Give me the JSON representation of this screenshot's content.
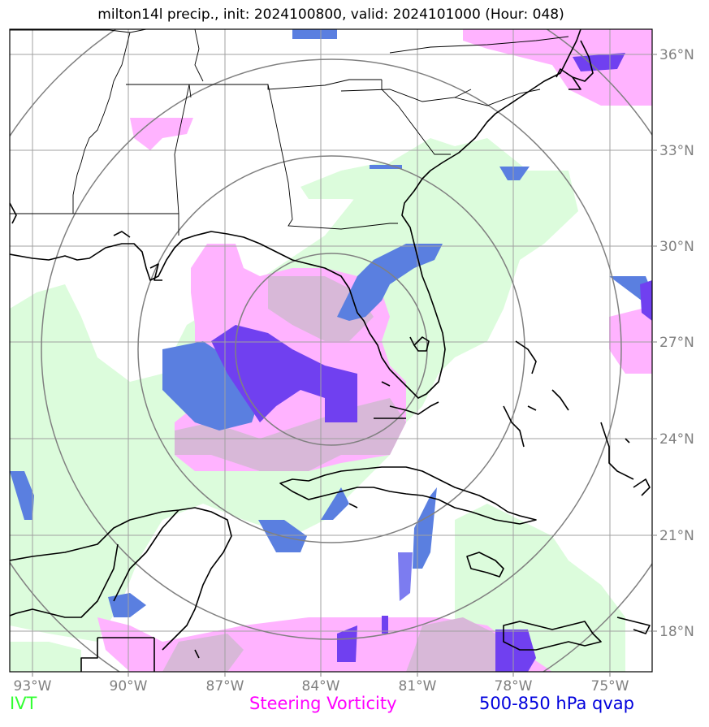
{
  "title": "milton14l precip., init: 2024100800, valid: 2024101000 (Hour: 048)",
  "axes": {
    "lon_ticks": [
      "93°W",
      "90°W",
      "87°W",
      "84°W",
      "81°W",
      "78°W",
      "75°W"
    ],
    "lat_ticks": [
      "36°N",
      "33°N",
      "30°N",
      "27°N",
      "24°N",
      "21°N",
      "18°N"
    ]
  },
  "legend": [
    {
      "label": "IVT",
      "color": "#33ff33"
    },
    {
      "label": "Steering Vorticity",
      "color": "#ff00ff"
    },
    {
      "label": "500-850 hPa qvap",
      "color": "#0000dd"
    }
  ],
  "colors": {
    "ivt_fill": "#dcfcdc",
    "steering_fill": "#ffb3ff",
    "steering_mix": "#d8b8d8",
    "qvap_fill": "#5a7fe0",
    "qvap_strong": "#7040f0",
    "grid": "#a0a0a0",
    "range_rings": "#808080",
    "coast": "#000000"
  }
}
